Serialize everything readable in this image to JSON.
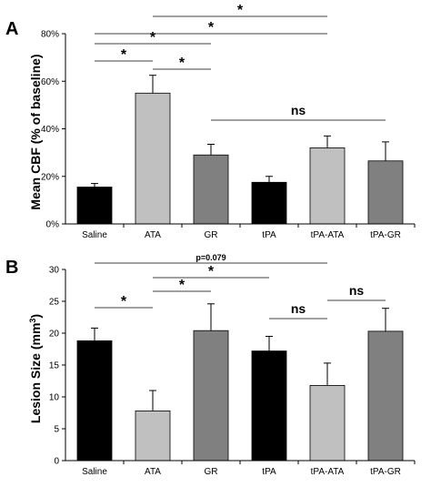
{
  "chart_data": [
    {
      "type": "bar",
      "panel": "A",
      "ylabel": "Mean CBF (% of baseline)",
      "ylim": [
        0,
        80
      ],
      "yticks": [
        0,
        20,
        40,
        60,
        80
      ],
      "ytick_labels": [
        "0%",
        "20%",
        "40%",
        "60%",
        "80%"
      ],
      "categories": [
        "Saline",
        "ATA",
        "GR",
        "tPA",
        "tPA-ATA",
        "tPA-GR"
      ],
      "values": [
        15.5,
        55,
        29,
        17.5,
        32,
        26.5
      ],
      "errors": [
        1.5,
        7.5,
        4.5,
        2.5,
        5,
        8
      ],
      "colors": [
        "#000000",
        "#c0c0c0",
        "#808080",
        "#000000",
        "#c0c0c0",
        "#808080"
      ],
      "annotations": [
        {
          "from": 0,
          "to": 1,
          "label": "*"
        },
        {
          "from": 1,
          "to": 2,
          "label": "*"
        },
        {
          "from": 0,
          "to": 2,
          "label": "*"
        },
        {
          "from": 0,
          "to": 4,
          "label": "*"
        },
        {
          "from": 1,
          "to": 4,
          "label": "*"
        },
        {
          "from": 2,
          "to": 5,
          "label": "ns"
        }
      ]
    },
    {
      "type": "bar",
      "panel": "B",
      "ylabel_main": "Lesion Size (mm",
      "ylabel_sup": "3",
      "ylabel_end": ")",
      "ylim": [
        0,
        30
      ],
      "yticks": [
        0,
        5,
        10,
        15,
        20,
        25,
        30
      ],
      "ytick_labels": [
        "0",
        "5",
        "10",
        "15",
        "20",
        "25",
        "30"
      ],
      "categories": [
        "Saline",
        "ATA",
        "GR",
        "tPA",
        "tPA-ATA",
        "tPA-GR"
      ],
      "values": [
        18.8,
        7.8,
        20.4,
        17.2,
        11.8,
        20.3
      ],
      "errors": [
        2,
        3.2,
        4.2,
        2.3,
        3.5,
        3.6
      ],
      "colors": [
        "#000000",
        "#c0c0c0",
        "#808080",
        "#000000",
        "#c0c0c0",
        "#808080"
      ],
      "annotations": [
        {
          "from": 0,
          "to": 1,
          "label": "*"
        },
        {
          "from": 1,
          "to": 2,
          "label": "*"
        },
        {
          "from": 1,
          "to": 3,
          "label": "*"
        },
        {
          "from": 0,
          "to": 4,
          "label": "p=0.079"
        },
        {
          "from": 3,
          "to": 4,
          "label": "ns"
        },
        {
          "from": 4,
          "to": 5,
          "label": "ns"
        }
      ]
    }
  ]
}
